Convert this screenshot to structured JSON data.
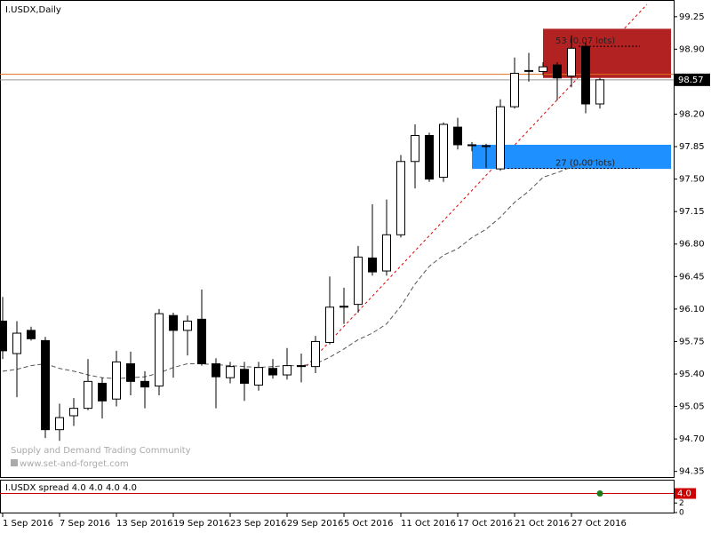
{
  "chart_data": {
    "type": "candlestick",
    "title": "I.USDX,Daily",
    "categories": [
      "1 Sep 2016",
      null,
      null,
      null,
      "7 Sep 2016",
      null,
      null,
      null,
      "13 Sep 2016",
      null,
      null,
      null,
      "19 Sep 2016",
      null,
      null,
      null,
      "23 Sep 2016",
      null,
      null,
      null,
      "29 Sep 2016",
      null,
      null,
      null,
      "5 Oct 2016",
      null,
      null,
      null,
      "11 Oct 2016",
      null,
      null,
      null,
      "17 Oct 2016",
      null,
      null,
      null,
      "21 Oct 2016",
      null,
      null,
      null,
      "27 Oct 2016",
      null,
      null
    ],
    "open": [
      95.97,
      95.62,
      95.87,
      95.76,
      94.8,
      94.95,
      95.03,
      95.3,
      95.13,
      95.51,
      95.32,
      95.27,
      96.03,
      95.87,
      95.99,
      95.51,
      95.36,
      95.45,
      95.28,
      95.46,
      95.39,
      95.49,
      95.48,
      95.74,
      96.12,
      96.15,
      96.65,
      96.51,
      96.9,
      97.69,
      97.97,
      97.52,
      98.06,
      97.87,
      97.86,
      97.61,
      98.28,
      98.67,
      98.66,
      98.73,
      98.61,
      98.93,
      98.31
    ],
    "high": [
      96.23,
      95.97,
      95.91,
      95.8,
      95.08,
      95.14,
      95.56,
      95.36,
      95.65,
      95.64,
      95.43,
      96.1,
      96.06,
      96.03,
      96.31,
      95.57,
      95.53,
      95.53,
      95.53,
      95.56,
      95.68,
      95.62,
      95.81,
      96.45,
      96.33,
      96.78,
      97.23,
      97.28,
      97.76,
      98.09,
      98.0,
      98.11,
      98.16,
      97.9,
      97.88,
      98.36,
      98.81,
      98.86,
      98.76,
      98.76,
      99.05,
      98.97,
      98.59
    ],
    "low": [
      95.56,
      95.15,
      95.76,
      94.71,
      94.68,
      94.84,
      95.01,
      94.92,
      95.05,
      95.17,
      95.03,
      95.17,
      95.36,
      95.6,
      95.49,
      95.03,
      95.3,
      95.11,
      95.22,
      95.35,
      95.34,
      95.31,
      95.41,
      95.72,
      95.94,
      96.06,
      96.46,
      96.46,
      96.87,
      97.4,
      97.47,
      97.47,
      97.82,
      97.8,
      97.62,
      97.59,
      98.26,
      98.55,
      98.62,
      98.35,
      98.49,
      98.21,
      98.26
    ],
    "close": [
      95.65,
      95.84,
      95.78,
      94.8,
      94.93,
      95.03,
      95.32,
      95.11,
      95.53,
      95.32,
      95.26,
      96.05,
      95.87,
      95.97,
      95.51,
      95.37,
      95.48,
      95.3,
      95.47,
      95.39,
      95.49,
      95.48,
      95.75,
      96.12,
      96.13,
      96.66,
      96.5,
      96.9,
      97.69,
      97.97,
      97.5,
      98.09,
      97.87,
      97.86,
      97.86,
      98.28,
      98.64,
      98.67,
      98.71,
      98.59,
      98.91,
      98.31,
      98.57
    ],
    "ma": [
      95.43,
      95.45,
      95.49,
      95.51,
      95.46,
      95.43,
      95.39,
      95.36,
      95.35,
      95.36,
      95.37,
      95.41,
      95.47,
      95.51,
      95.51,
      95.5,
      95.49,
      95.48,
      95.47,
      95.48,
      95.49,
      95.49,
      95.51,
      95.58,
      95.67,
      95.77,
      95.84,
      95.94,
      96.13,
      96.37,
      96.56,
      96.68,
      96.75,
      96.87,
      96.96,
      97.09,
      97.25,
      97.37,
      97.52,
      97.57,
      97.63,
      97.68,
      97.71
    ],
    "ylim": [
      94.28,
      99.43
    ],
    "yticks": [
      {
        "value": 94.35,
        "label": "94.35"
      },
      {
        "value": 94.7,
        "label": "94.70"
      },
      {
        "value": 95.05,
        "label": "95.05"
      },
      {
        "value": 95.4,
        "label": "95.40"
      },
      {
        "value": 95.75,
        "label": "95.75"
      },
      {
        "value": 96.1,
        "label": "96.10"
      },
      {
        "value": 96.45,
        "label": "96.45"
      },
      {
        "value": 96.8,
        "label": "96.80"
      },
      {
        "value": 97.15,
        "label": "97.15"
      },
      {
        "value": 97.5,
        "label": "97.50"
      },
      {
        "value": 97.85,
        "label": "97.85"
      },
      {
        "value": 98.2,
        "label": "98.20"
      },
      {
        "value": 98.9,
        "label": "98.90"
      },
      {
        "value": 99.25,
        "label": "99.25"
      }
    ],
    "last_price": 98.57,
    "level": 98.63,
    "zones": [
      {
        "top": 99.12,
        "bottom": 98.59,
        "color": "#b22222",
        "label": "53 (0.07 lots)"
      },
      {
        "top": 97.87,
        "bottom": 97.61,
        "color": "#1e90ff",
        "label": "27 (0.00 lots)"
      }
    ],
    "watermark": [
      "Supply and Demand Trading Community",
      "www.set-and-forget.com"
    ],
    "spread": {
      "label": "I.USDX spread 4.0 4.0 4.0 4.0",
      "value": 4,
      "value_label": "4.0",
      "ylim": [
        0,
        6.7
      ],
      "yticks": [
        0,
        2
      ]
    }
  }
}
